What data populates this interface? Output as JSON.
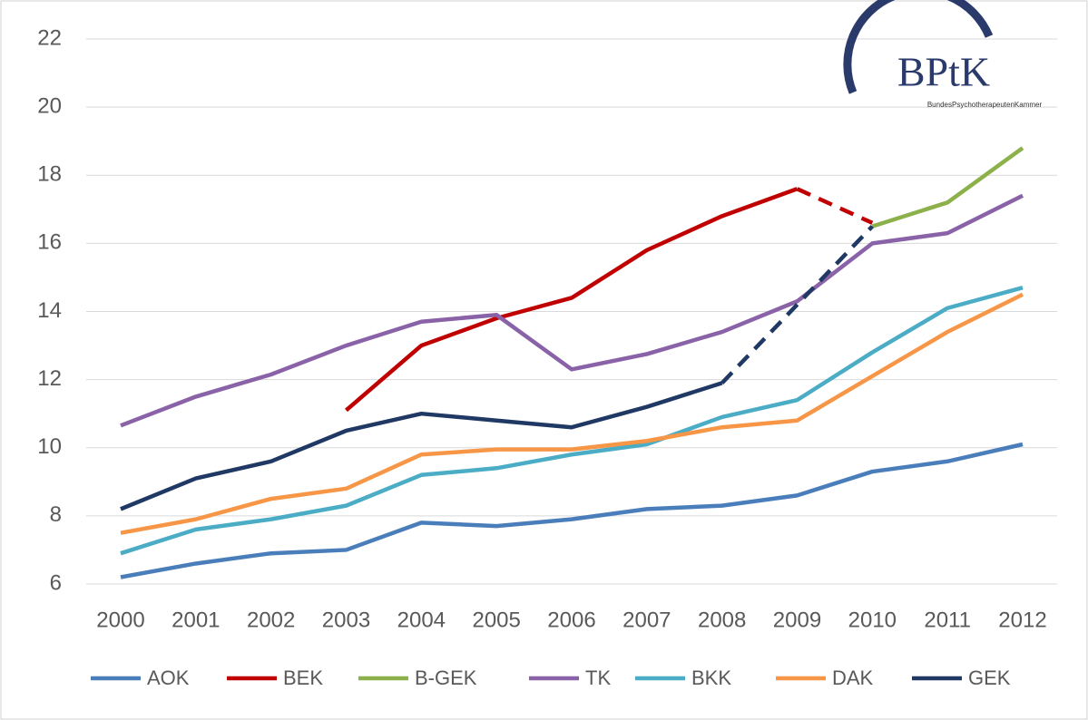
{
  "chart_data": {
    "type": "line",
    "logo": {
      "text": "BPtK",
      "subtitle": "BundesPsychotherapeutenKammer"
    },
    "categories": [
      "2000",
      "2001",
      "2002",
      "2003",
      "2004",
      "2005",
      "2006",
      "2007",
      "2008",
      "2009",
      "2010",
      "2011",
      "2012"
    ],
    "series": [
      {
        "name": "AOK",
        "color": "#4a7ebb",
        "values": [
          6.2,
          6.6,
          6.9,
          7.0,
          7.8,
          7.7,
          7.9,
          8.2,
          8.3,
          8.6,
          9.3,
          9.6,
          10.1
        ]
      },
      {
        "name": "BEK",
        "color": "#c00000",
        "dashed_after": 9,
        "values": [
          null,
          null,
          null,
          11.1,
          13.0,
          13.8,
          14.4,
          15.8,
          16.8,
          17.6,
          16.6,
          null,
          null
        ]
      },
      {
        "name": "B-GEK",
        "color": "#8db14a",
        "values": [
          null,
          null,
          null,
          null,
          null,
          null,
          null,
          null,
          null,
          null,
          16.5,
          17.2,
          18.8
        ]
      },
      {
        "name": "TK",
        "color": "#8a62a8",
        "values": [
          10.65,
          11.5,
          12.15,
          13.0,
          13.7,
          13.9,
          12.3,
          12.75,
          13.4,
          14.3,
          16.0,
          16.3,
          17.4
        ]
      },
      {
        "name": "BKK",
        "color": "#4bacc6",
        "values": [
          6.9,
          7.6,
          7.9,
          8.3,
          9.2,
          9.4,
          9.8,
          10.1,
          10.9,
          11.4,
          12.8,
          14.1,
          14.7
        ]
      },
      {
        "name": "DAK",
        "color": "#f79646",
        "values": [
          7.5,
          7.9,
          8.5,
          8.8,
          9.8,
          9.95,
          9.95,
          10.2,
          10.6,
          10.8,
          12.1,
          13.4,
          14.5
        ]
      },
      {
        "name": "GEK",
        "color": "#1f3864",
        "dashed_after": 8,
        "values": [
          8.2,
          9.1,
          9.6,
          10.5,
          11.0,
          10.8,
          10.6,
          11.2,
          11.9,
          14.2,
          16.5,
          null,
          null
        ]
      }
    ],
    "ylim": [
      6,
      22
    ],
    "yticks": [
      6,
      8,
      10,
      12,
      14,
      16,
      18,
      20,
      22
    ],
    "grid": true,
    "legend": "bottom"
  }
}
